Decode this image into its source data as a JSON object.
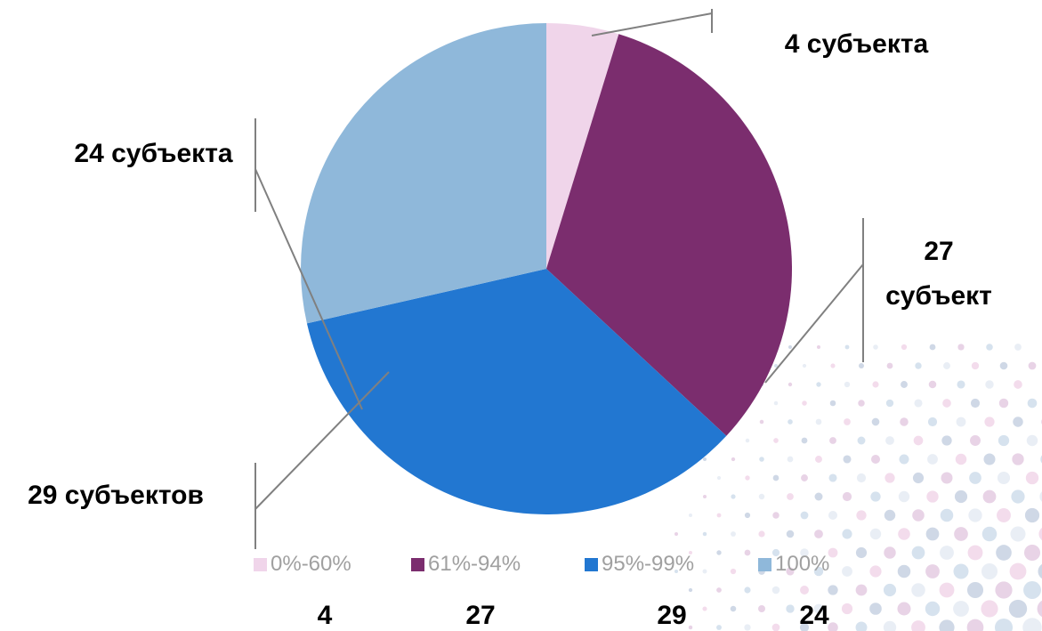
{
  "chart_data": {
    "type": "pie",
    "categories": [
      "0%-60%",
      "61%-94%",
      "95%-99%",
      "100%"
    ],
    "values": [
      4,
      27,
      29,
      24
    ],
    "value_labels": [
      "4 субъекта",
      "27 субъект",
      "29 субъектов",
      "24 субъекта"
    ],
    "colors": [
      "#f0d5ea",
      "#7b2d6e",
      "#2277d1",
      "#8fb8da"
    ]
  }
}
